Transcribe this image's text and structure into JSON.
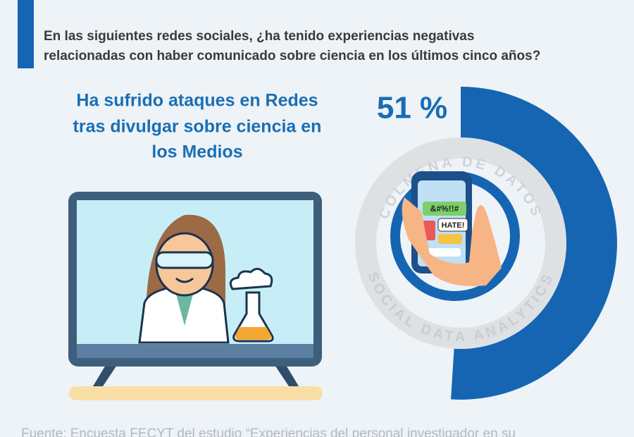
{
  "header": {
    "question": [
      "En las siguientes redes sociales, ¿ha tenido experiencias negativas",
      "relacionadas con haber comunicado sobre ciencia en los últimos cinco años?"
    ]
  },
  "stat": {
    "label": [
      "Ha sufrido ataques en Redes",
      "tras divulgar sobre ciencia en",
      "los Medios"
    ],
    "value": 51,
    "value_label": "51 %",
    "color": "#1565b3",
    "max": 100
  },
  "watermark": {
    "top": "COLMENA DE DATOS",
    "bottom": "SOCIAL DATA ANALYTICS"
  },
  "phone_bubbles": [
    "&#%!!#",
    "HATE!"
  ],
  "source": "Fuente: Encuesta FECYT del estudio “Experiencias del personal investigador en su"
}
